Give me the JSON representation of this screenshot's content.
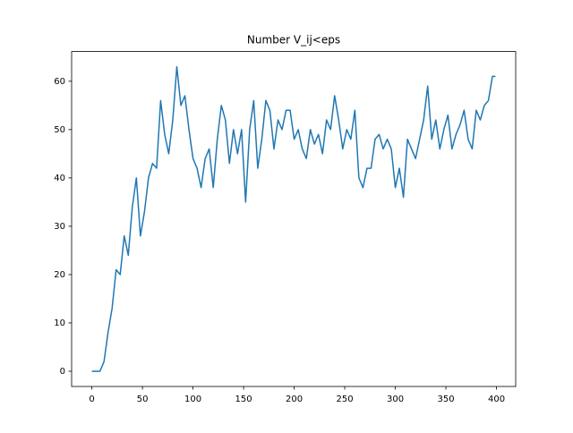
{
  "chart_data": {
    "type": "line",
    "title": "Number V_ij<eps",
    "x": [
      0,
      4,
      8,
      12,
      16,
      20,
      24,
      28,
      32,
      36,
      40,
      44,
      48,
      52,
      56,
      60,
      64,
      68,
      72,
      76,
      80,
      84,
      88,
      92,
      96,
      100,
      104,
      108,
      112,
      116,
      120,
      124,
      128,
      132,
      136,
      140,
      144,
      148,
      152,
      156,
      160,
      164,
      168,
      172,
      176,
      180,
      184,
      188,
      192,
      196,
      200,
      204,
      208,
      212,
      216,
      220,
      224,
      228,
      232,
      236,
      240,
      244,
      248,
      252,
      256,
      260,
      264,
      268,
      272,
      276,
      280,
      284,
      288,
      292,
      296,
      300,
      304,
      308,
      312,
      316,
      320,
      324,
      328,
      332,
      336,
      340,
      344,
      348,
      352,
      356,
      360,
      364,
      368,
      372,
      376,
      380,
      384,
      388,
      392,
      396,
      399
    ],
    "series": [
      {
        "name": "Number V_ij<eps",
        "color": "#1f77b4",
        "values": [
          0,
          0,
          0,
          2,
          8,
          13,
          21,
          20,
          28,
          24,
          34,
          40,
          28,
          33,
          40,
          43,
          42,
          56,
          49,
          45,
          52,
          63,
          55,
          57,
          50,
          44,
          42,
          38,
          44,
          46,
          38,
          48,
          55,
          52,
          43,
          50,
          45,
          50,
          35,
          50,
          56,
          42,
          48,
          56,
          54,
          46,
          52,
          50,
          54,
          54,
          48,
          50,
          46,
          44,
          50,
          47,
          49,
          45,
          52,
          50,
          57,
          52,
          46,
          50,
          48,
          54,
          40,
          38,
          42,
          42,
          48,
          49,
          46,
          48,
          46,
          38,
          42,
          36,
          48,
          46,
          44,
          48,
          52,
          59,
          48,
          52,
          46,
          50,
          53,
          46,
          49,
          51,
          54,
          48,
          46,
          54,
          52,
          55,
          56,
          61,
          61
        ]
      }
    ],
    "xlim": [
      -20,
      419
    ],
    "ylim": [
      -3.15,
      66.15
    ],
    "xticks": [
      0,
      50,
      100,
      150,
      200,
      250,
      300,
      350,
      400
    ],
    "yticks": [
      0,
      10,
      20,
      30,
      40,
      50,
      60
    ]
  }
}
